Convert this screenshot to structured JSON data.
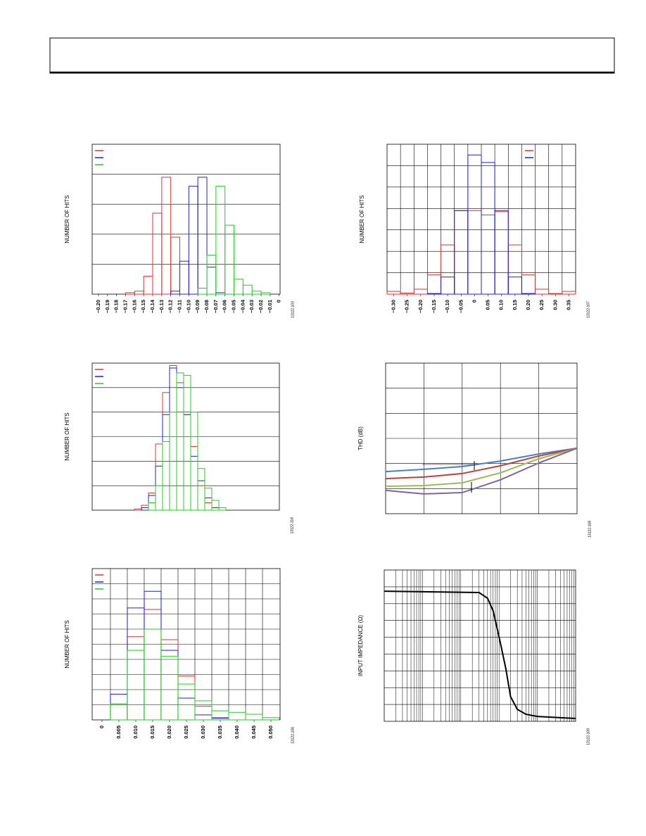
{
  "chart_data": [
    {
      "type": "histogram",
      "ylabel": "NUMBER OF HITS",
      "figure_id": "13122-103",
      "legend": "upper left",
      "xlim": [
        -0.207,
        0.001
      ],
      "ylim": [
        0,
        50
      ],
      "ygrid": [
        10,
        20,
        30,
        40
      ],
      "xticks": [
        {
          "value": -0.2,
          "label": "−0.20"
        },
        {
          "value": -0.19,
          "label": "−0.19"
        },
        {
          "value": -0.18,
          "label": "−0.18"
        },
        {
          "value": -0.17,
          "label": "−0.17"
        },
        {
          "value": -0.16,
          "label": "−0.16"
        },
        {
          "value": -0.15,
          "label": "−0.15"
        },
        {
          "value": -0.14,
          "label": "−0.14"
        },
        {
          "value": -0.13,
          "label": "−0.13"
        },
        {
          "value": -0.12,
          "label": "−0.12"
        },
        {
          "value": -0.11,
          "label": "−0.11"
        },
        {
          "value": -0.1,
          "label": "−0.10"
        },
        {
          "value": -0.09,
          "label": "−0.09"
        },
        {
          "value": -0.08,
          "label": "−0.08"
        },
        {
          "value": -0.07,
          "label": "−0.07"
        },
        {
          "value": -0.06,
          "label": "−0.06"
        },
        {
          "value": -0.05,
          "label": "−0.05"
        },
        {
          "value": -0.04,
          "label": "−0.04"
        },
        {
          "value": -0.03,
          "label": "−0.03"
        },
        {
          "value": -0.02,
          "label": "−0.02"
        },
        {
          "value": -0.01,
          "label": "−0.01"
        },
        0
      ],
      "bins": [
        -0.2,
        -0.19,
        -0.18,
        -0.17,
        -0.16,
        -0.15,
        -0.14,
        -0.13,
        -0.12,
        -0.11,
        -0.1,
        -0.09,
        -0.08,
        -0.07,
        -0.06,
        -0.05,
        -0.04,
        -0.03,
        -0.02,
        -0.01,
        0
      ],
      "series": [
        {
          "color": "#e03030",
          "values": [
            0,
            0,
            0,
            0.5,
            1,
            6,
            27,
            39,
            19,
            0,
            0,
            0,
            0,
            0,
            0,
            0,
            0,
            0,
            0,
            0
          ]
        },
        {
          "color": "#2020d0",
          "values": [
            0,
            0,
            0,
            0,
            0,
            0,
            0,
            0,
            1,
            11,
            36,
            39,
            9,
            0.5,
            0,
            0,
            0,
            0,
            0,
            0
          ]
        },
        {
          "color": "#22cc22",
          "values": [
            0,
            0,
            0,
            0,
            0,
            0,
            0,
            0,
            0,
            0,
            0,
            2,
            13,
            36,
            23,
            5,
            3,
            1,
            0.5,
            0
          ]
        }
      ]
    },
    {
      "type": "histogram",
      "ylabel": "NUMBER OF HITS",
      "figure_id": "13122-107",
      "legend": "upper right",
      "xlim": [
        -0.325,
        0.375
      ],
      "ylim": [
        0,
        70
      ],
      "ygrid": [
        10,
        20,
        30,
        40,
        50,
        60
      ],
      "xgrid": [
        -0.275,
        -0.225,
        -0.175,
        -0.125,
        -0.075,
        -0.025,
        0.025,
        0.075,
        0.125,
        0.175,
        0.225,
        0.275,
        0.325
      ],
      "xticks": [
        {
          "value": -0.3,
          "label": "−0.30"
        },
        {
          "value": -0.25,
          "label": "−0.25"
        },
        {
          "value": -0.2,
          "label": "−0.20"
        },
        {
          "value": -0.15,
          "label": "−0.15"
        },
        {
          "value": -0.1,
          "label": "−0.10"
        },
        {
          "value": -0.05,
          "label": "−0.05"
        },
        0,
        0.05,
        {
          "value": 0.1,
          "label": "0.10"
        },
        0.15,
        {
          "value": 0.2,
          "label": "0.20"
        },
        0.25,
        {
          "value": 0.3,
          "label": "0.30"
        },
        0.35
      ],
      "bins": [
        -0.325,
        -0.275,
        -0.225,
        -0.175,
        -0.125,
        -0.075,
        -0.025,
        0.025,
        0.075,
        0.125,
        0.175,
        0.225,
        0.275,
        0.325,
        0.375
      ],
      "series": [
        {
          "color": "#e03030",
          "values": [
            1.3,
            0.5,
            2.3,
            9,
            23,
            39,
            39,
            37,
            38.5,
            23,
            9,
            2.3,
            0.3,
            1.3
          ]
        },
        {
          "color": "#2020d0",
          "values": [
            0,
            0,
            0,
            0.3,
            8,
            39,
            65,
            61.5,
            39,
            8,
            0.3,
            0,
            0,
            0
          ]
        }
      ]
    },
    {
      "type": "histogram",
      "ylabel": "NUMBER OF HITS",
      "figure_id": "13122-118",
      "legend": "upper left",
      "xlim": [
        0,
        26.6
      ],
      "ylim": [
        0,
        60
      ],
      "ygrid": [
        10,
        20,
        30,
        40,
        50
      ],
      "bins": [
        6,
        7,
        8,
        9,
        10,
        11,
        12,
        13,
        14,
        15,
        16,
        17,
        18,
        19
      ],
      "series": [
        {
          "color": "#e03030",
          "values": [
            0.5,
            2,
            7,
            27,
            48,
            59,
            52,
            39,
            26,
            10,
            3,
            1,
            0
          ]
        },
        {
          "color": "#2020d0",
          "values": [
            0,
            1,
            6,
            18,
            39,
            58,
            50,
            39,
            22,
            12,
            5,
            1,
            0
          ]
        },
        {
          "color": "#22cc22",
          "values": [
            0,
            0,
            3,
            10,
            28,
            40,
            56,
            55,
            40,
            17,
            9,
            4,
            1
          ]
        }
      ]
    },
    {
      "type": "line",
      "ylabel": "THD (dB)",
      "figure_id": "13122-108",
      "xlim": [
        0,
        5
      ],
      "ylim": [
        0,
        6
      ],
      "ygrid": [
        1,
        2,
        3,
        4,
        5
      ],
      "xgrid": [
        1,
        2,
        3,
        4
      ],
      "x": [
        0,
        1,
        2,
        3,
        4,
        5
      ],
      "series": [
        {
          "color": "#4a7fbf",
          "values": [
            1.68,
            1.77,
            1.88,
            2.1,
            2.38,
            2.61
          ]
        },
        {
          "color": "#c0403f",
          "values": [
            1.4,
            1.46,
            1.6,
            1.91,
            2.3,
            2.61
          ]
        },
        {
          "color": "#9bbb59",
          "values": [
            1.09,
            1.12,
            1.23,
            1.63,
            2.19,
            2.61
          ]
        },
        {
          "color": "#8064a2",
          "values": [
            0.93,
            0.79,
            0.84,
            1.35,
            2.02,
            2.61
          ]
        }
      ]
    },
    {
      "type": "histogram",
      "ylabel": "NUMBER OF HITS",
      "figure_id": "13122-106",
      "legend": "upper left",
      "xlim": [
        -0.0029,
        0.0527
      ],
      "ylim": [
        0,
        100
      ],
      "ygrid": [
        10,
        20,
        30,
        40,
        50,
        60,
        70,
        80,
        90
      ],
      "xgrid": [
        0.0025,
        0.0075,
        0.0125,
        0.0175,
        0.0225,
        0.0275,
        0.0325,
        0.0375,
        0.0425,
        0.0475
      ],
      "xticks": [
        0,
        0.005,
        {
          "value": 0.01,
          "label": "0.010"
        },
        0.015,
        {
          "value": 0.02,
          "label": "0.020"
        },
        0.025,
        {
          "value": 0.03,
          "label": "0.030"
        },
        0.035,
        {
          "value": 0.04,
          "label": "0.040"
        },
        0.045,
        {
          "value": 0.05,
          "label": "0.050"
        }
      ],
      "bins": [
        -0.0025,
        0.0025,
        0.0075,
        0.0125,
        0.0175,
        0.0225,
        0.0275,
        0.0325,
        0.0375,
        0.0425,
        0.0475,
        0.0525
      ],
      "series": [
        {
          "color": "#e03030",
          "values": [
            0,
            10,
            55,
            73,
            53,
            29,
            9,
            1.5,
            0,
            0,
            0
          ]
        },
        {
          "color": "#2020d0",
          "values": [
            0,
            17,
            74,
            85,
            46,
            14.4,
            3.3,
            1,
            0,
            0,
            0
          ]
        },
        {
          "color": "#22cc22",
          "values": [
            0,
            10.7,
            46,
            60,
            42,
            23.7,
            12.6,
            6,
            5,
            3.7,
            1.5
          ]
        }
      ]
    },
    {
      "type": "line",
      "ylabel": "INPUT IMPEDANCE (Ω)",
      "figure_id": "13122-109",
      "log_x": true,
      "xlim": [
        1,
        100000
      ],
      "ylim": [
        0,
        9
      ],
      "ygrid": [
        1,
        2,
        3,
        4,
        5,
        6,
        7,
        8
      ],
      "x": [
        1,
        300,
        500,
        700,
        1000,
        1500,
        2000,
        3000,
        5000,
        10000,
        100000
      ],
      "series": [
        {
          "color": "#000000",
          "values": [
            7.74,
            7.66,
            7.32,
            6.57,
            5.02,
            3.14,
            1.46,
            0.71,
            0.42,
            0.29,
            0.17
          ]
        }
      ]
    }
  ]
}
